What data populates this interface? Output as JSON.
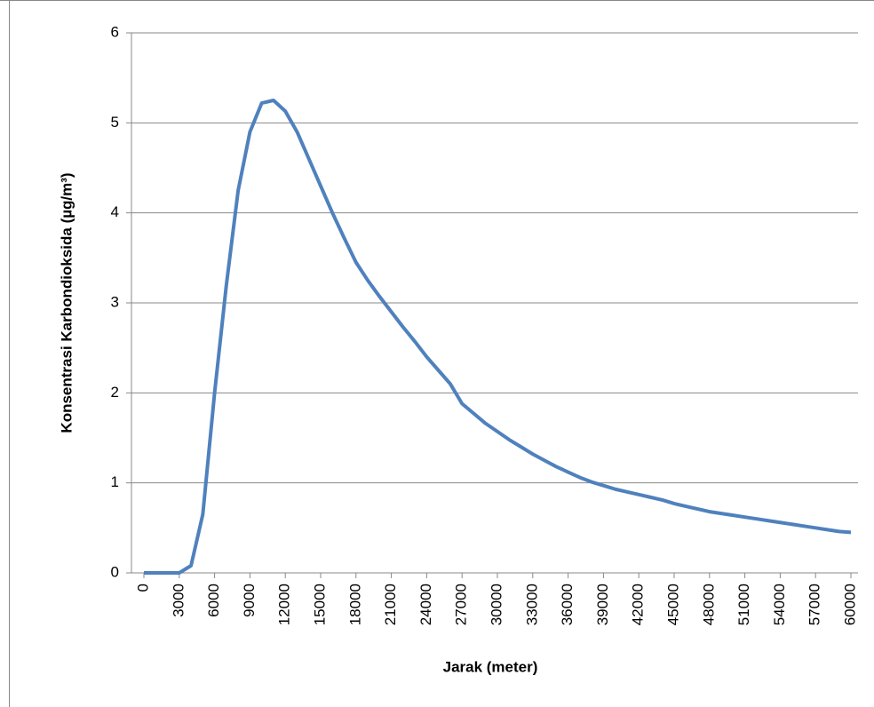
{
  "chart_data": {
    "type": "line",
    "x_label": "Jarak (meter)",
    "y_label": "Konsentrasi Karbondioksida (µg/m³)",
    "x": [
      0,
      1000,
      2000,
      3000,
      4000,
      5000,
      6000,
      7000,
      8000,
      9000,
      10000,
      11000,
      12000,
      13000,
      14000,
      15000,
      16000,
      17000,
      18000,
      19000,
      20000,
      21000,
      22000,
      23000,
      24000,
      25000,
      26000,
      27000,
      28000,
      29000,
      30000,
      31000,
      32000,
      33000,
      34000,
      35000,
      36000,
      37000,
      38000,
      39000,
      40000,
      41000,
      42000,
      43000,
      44000,
      45000,
      46000,
      47000,
      48000,
      49000,
      50000,
      51000,
      52000,
      53000,
      54000,
      55000,
      56000,
      57000,
      58000,
      59000,
      60000
    ],
    "series": [
      {
        "color": "#4f81bd",
        "values": [
          0,
          0,
          0,
          0,
          0.08,
          0.65,
          2.0,
          3.2,
          4.25,
          4.9,
          5.22,
          5.25,
          5.13,
          4.9,
          4.6,
          4.3,
          4.0,
          3.72,
          3.45,
          3.25,
          3.07,
          2.9,
          2.73,
          2.57,
          2.4,
          2.25,
          2.1,
          1.88,
          1.77,
          1.66,
          1.57,
          1.48,
          1.4,
          1.32,
          1.25,
          1.18,
          1.12,
          1.06,
          1.01,
          0.97,
          0.93,
          0.9,
          0.87,
          0.84,
          0.81,
          0.77,
          0.74,
          0.71,
          0.68,
          0.66,
          0.64,
          0.62,
          0.6,
          0.58,
          0.56,
          0.54,
          0.52,
          0.5,
          0.48,
          0.46,
          0.45
        ]
      }
    ],
    "xlim": [
      0,
      60000
    ],
    "xticks": [
      0,
      3000,
      6000,
      9000,
      12000,
      15000,
      18000,
      21000,
      24000,
      27000,
      30000,
      33000,
      36000,
      39000,
      42000,
      45000,
      48000,
      51000,
      54000,
      57000,
      60000
    ],
    "ylim": [
      0,
      6
    ],
    "yticks": [
      0,
      1,
      2,
      3,
      4,
      5,
      6
    ],
    "grid": true
  }
}
